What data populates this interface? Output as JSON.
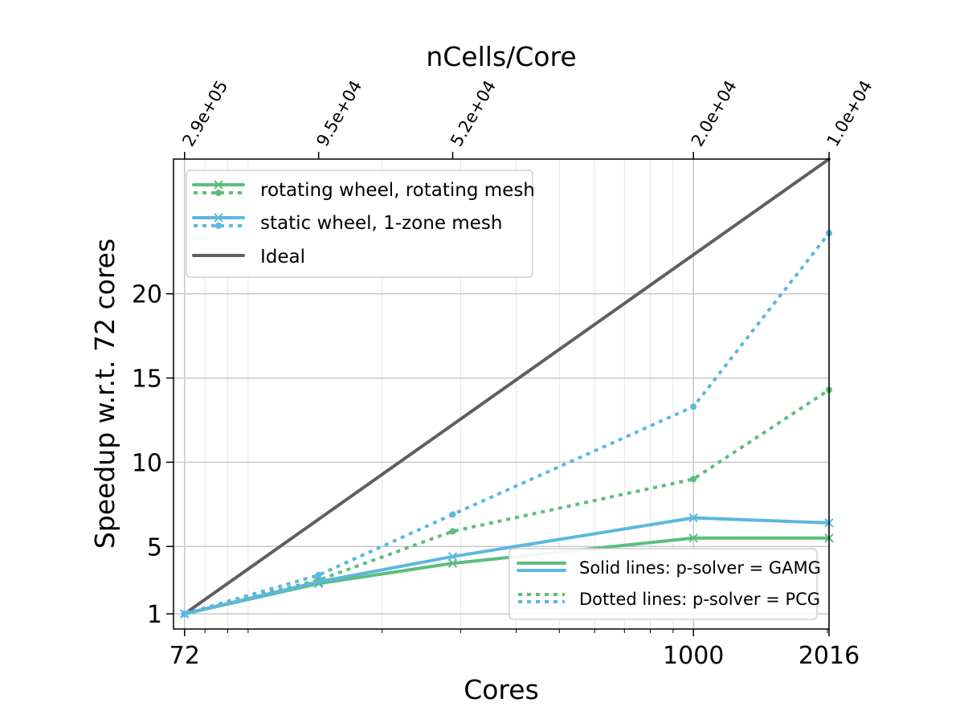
{
  "chart_data": {
    "type": "line",
    "title": "",
    "xlabel": "Cores",
    "ylabel": "Speedup w.r.t. 72 cores",
    "top_xlabel": "nCells/Core",
    "xscale": "log",
    "xlim": [
      68,
      2016
    ],
    "ylim": [
      0.1,
      28
    ],
    "x_ticks": [
      72,
      1000,
      2016
    ],
    "x_tick_labels": [
      "72",
      "1000",
      "2016"
    ],
    "y_ticks": [
      1,
      5,
      10,
      15,
      20
    ],
    "y_tick_labels": [
      "1",
      "5",
      "10",
      "15",
      "20"
    ],
    "top_ticks": [
      72,
      144,
      288,
      1000,
      2016
    ],
    "top_tick_labels": [
      "2.9e+05",
      "9.5e+04",
      "5.2e+04",
      "2.0e+04",
      "1.0e+04"
    ],
    "grid": true,
    "legend_placement": "upper-left",
    "series": [
      {
        "name": "rotating wheel, rotating mesh",
        "solver": "GAMG",
        "style": "solid",
        "marker": "x",
        "color": "#5cbd7d",
        "x": [
          72,
          144,
          288,
          1000,
          2016
        ],
        "y": [
          1,
          2.8,
          4.0,
          5.5,
          5.5
        ]
      },
      {
        "name": "rotating wheel, rotating mesh",
        "solver": "PCG",
        "style": "dotted",
        "marker": "dot",
        "color": "#5cbd7d",
        "x": [
          72,
          144,
          288,
          1000,
          2016
        ],
        "y": [
          1,
          3.0,
          5.9,
          9.0,
          14.3
        ]
      },
      {
        "name": "static wheel, 1-zone mesh",
        "solver": "GAMG",
        "style": "solid",
        "marker": "x",
        "color": "#5ab8e0",
        "x": [
          72,
          144,
          288,
          1000,
          2016
        ],
        "y": [
          1,
          2.9,
          4.4,
          6.7,
          6.4
        ]
      },
      {
        "name": "static wheel, 1-zone mesh",
        "solver": "PCG",
        "style": "dotted",
        "marker": "dot",
        "color": "#5ab8e0",
        "x": [
          72,
          144,
          288,
          1000,
          2016
        ],
        "y": [
          1,
          3.3,
          6.9,
          13.3,
          23.6
        ]
      },
      {
        "name": "Ideal",
        "style": "solid",
        "marker": "none",
        "color": "#5f5f63",
        "x": [
          72,
          2016
        ],
        "y": [
          1,
          28
        ]
      }
    ],
    "legend_entries": [
      {
        "label": "rotating wheel, rotating mesh",
        "color": "#5cbd7d"
      },
      {
        "label": "static wheel, 1-zone mesh",
        "color": "#5ab8e0"
      },
      {
        "label": "Ideal",
        "color": "#5f5f63"
      }
    ],
    "legend2_entries": [
      {
        "label": "Solid lines: p-solver = GAMG"
      },
      {
        "label": "Dotted lines: p-solver = PCG"
      }
    ]
  },
  "colors": {
    "green": "#5cbd7d",
    "blue": "#5ab8e0",
    "ideal": "#5f5f63",
    "grid": "#c8c8c8"
  }
}
